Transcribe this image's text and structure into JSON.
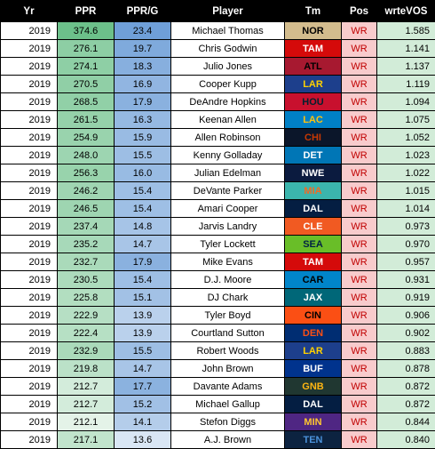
{
  "headers": [
    "Yr",
    "PPR",
    "PPR/G",
    "Player",
    "Tm",
    "Pos",
    "wrteVOS"
  ],
  "rows": [
    {
      "yr": "2019",
      "ppr": "374.6",
      "pprg": "23.4",
      "player": "Michael Thomas",
      "tm": "NOR",
      "pos": "WR",
      "vos": "1.585"
    },
    {
      "yr": "2019",
      "ppr": "276.1",
      "pprg": "19.7",
      "player": "Chris Godwin",
      "tm": "TAM",
      "pos": "WR",
      "vos": "1.141"
    },
    {
      "yr": "2019",
      "ppr": "274.1",
      "pprg": "18.3",
      "player": "Julio Jones",
      "tm": "ATL",
      "pos": "WR",
      "vos": "1.137"
    },
    {
      "yr": "2019",
      "ppr": "270.5",
      "pprg": "16.9",
      "player": "Cooper Kupp",
      "tm": "LAR",
      "pos": "WR",
      "vos": "1.119"
    },
    {
      "yr": "2019",
      "ppr": "268.5",
      "pprg": "17.9",
      "player": "DeAndre Hopkins",
      "tm": "HOU",
      "pos": "WR",
      "vos": "1.094"
    },
    {
      "yr": "2019",
      "ppr": "261.5",
      "pprg": "16.3",
      "player": "Keenan Allen",
      "tm": "LAC",
      "pos": "WR",
      "vos": "1.075"
    },
    {
      "yr": "2019",
      "ppr": "254.9",
      "pprg": "15.9",
      "player": "Allen Robinson",
      "tm": "CHI",
      "pos": "WR",
      "vos": "1.052"
    },
    {
      "yr": "2019",
      "ppr": "248.0",
      "pprg": "15.5",
      "player": "Kenny Golladay",
      "tm": "DET",
      "pos": "WR",
      "vos": "1.023"
    },
    {
      "yr": "2019",
      "ppr": "256.3",
      "pprg": "16.0",
      "player": "Julian Edelman",
      "tm": "NWE",
      "pos": "WR",
      "vos": "1.022"
    },
    {
      "yr": "2019",
      "ppr": "246.2",
      "pprg": "15.4",
      "player": "DeVante Parker",
      "tm": "MIA",
      "pos": "WR",
      "vos": "1.015"
    },
    {
      "yr": "2019",
      "ppr": "246.5",
      "pprg": "15.4",
      "player": "Amari Cooper",
      "tm": "DAL",
      "pos": "WR",
      "vos": "1.014"
    },
    {
      "yr": "2019",
      "ppr": "237.4",
      "pprg": "14.8",
      "player": "Jarvis Landry",
      "tm": "CLE",
      "pos": "WR",
      "vos": "0.973"
    },
    {
      "yr": "2019",
      "ppr": "235.2",
      "pprg": "14.7",
      "player": "Tyler Lockett",
      "tm": "SEA",
      "pos": "WR",
      "vos": "0.970"
    },
    {
      "yr": "2019",
      "ppr": "232.7",
      "pprg": "17.9",
      "player": "Mike Evans",
      "tm": "TAM",
      "pos": "WR",
      "vos": "0.957"
    },
    {
      "yr": "2019",
      "ppr": "230.5",
      "pprg": "15.4",
      "player": "D.J. Moore",
      "tm": "CAR",
      "pos": "WR",
      "vos": "0.931"
    },
    {
      "yr": "2019",
      "ppr": "225.8",
      "pprg": "15.1",
      "player": "DJ Chark",
      "tm": "JAX",
      "pos": "WR",
      "vos": "0.919"
    },
    {
      "yr": "2019",
      "ppr": "222.9",
      "pprg": "13.9",
      "player": "Tyler Boyd",
      "tm": "CIN",
      "pos": "WR",
      "vos": "0.906"
    },
    {
      "yr": "2019",
      "ppr": "222.4",
      "pprg": "13.9",
      "player": "Courtland Sutton",
      "tm": "DEN",
      "pos": "WR",
      "vos": "0.902"
    },
    {
      "yr": "2019",
      "ppr": "232.9",
      "pprg": "15.5",
      "player": "Robert Woods",
      "tm": "LAR",
      "pos": "WR",
      "vos": "0.883"
    },
    {
      "yr": "2019",
      "ppr": "219.8",
      "pprg": "14.7",
      "player": "John Brown",
      "tm": "BUF",
      "pos": "WR",
      "vos": "0.878"
    },
    {
      "yr": "2019",
      "ppr": "212.7",
      "pprg": "17.7",
      "player": "Davante Adams",
      "tm": "GNB",
      "pos": "WR",
      "vos": "0.872"
    },
    {
      "yr": "2019",
      "ppr": "212.7",
      "pprg": "15.2",
      "player": "Michael Gallup",
      "tm": "DAL",
      "pos": "WR",
      "vos": "0.872"
    },
    {
      "yr": "2019",
      "ppr": "212.1",
      "pprg": "14.1",
      "player": "Stefon Diggs",
      "tm": "MIN",
      "pos": "WR",
      "vos": "0.844"
    },
    {
      "yr": "2019",
      "ppr": "217.1",
      "pprg": "13.6",
      "player": "A.J. Brown",
      "tm": "TEN",
      "pos": "WR",
      "vos": "0.840"
    }
  ],
  "team_colors": {
    "NOR": {
      "bg": "#d3bc8d",
      "fg": "#000000"
    },
    "TAM": {
      "bg": "#d50a0a",
      "fg": "#ffffff"
    },
    "ATL": {
      "bg": "#a71930",
      "fg": "#000000"
    },
    "LAR": {
      "bg": "#1d3f8c",
      "fg": "#ffd100"
    },
    "HOU": {
      "bg": "#c8102e",
      "fg": "#03202f"
    },
    "LAC": {
      "bg": "#0080c6",
      "fg": "#ffc20e"
    },
    "CHI": {
      "bg": "#0b162a",
      "fg": "#c83803"
    },
    "DET": {
      "bg": "#0076b6",
      "fg": "#ffffff"
    },
    "NWE": {
      "bg": "#0b1b3f",
      "fg": "#ffffff"
    },
    "MIA": {
      "bg": "#3bb5ad",
      "fg": "#f26a24"
    },
    "DAL": {
      "bg": "#041e42",
      "fg": "#ffffff"
    },
    "CLE": {
      "bg": "#f15a22",
      "fg": "#ffffff"
    },
    "SEA": {
      "bg": "#69be28",
      "fg": "#002244"
    },
    "CAR": {
      "bg": "#0085ca",
      "fg": "#000000"
    },
    "JAX": {
      "bg": "#006778",
      "fg": "#ffffff"
    },
    "CIN": {
      "bg": "#fb4f14",
      "fg": "#000000"
    },
    "DEN": {
      "bg": "#002d72",
      "fg": "#fb4f14"
    },
    "BUF": {
      "bg": "#00338d",
      "fg": "#ffffff"
    },
    "GNB": {
      "bg": "#203731",
      "fg": "#ffb612"
    },
    "MIN": {
      "bg": "#4f2683",
      "fg": "#ffc62f"
    },
    "TEN": {
      "bg": "#0c2340",
      "fg": "#4b92db"
    }
  },
  "colors": {
    "ppr_low": "#e4f3e8",
    "ppr_high": "#6cc08a",
    "pprg_low": "#d9e6f4",
    "pprg_high": "#6f9fd8",
    "vos_bg": "#d2ecd8",
    "pos_bg": "#f8cbcc",
    "pos_fg": "#c00000"
  }
}
